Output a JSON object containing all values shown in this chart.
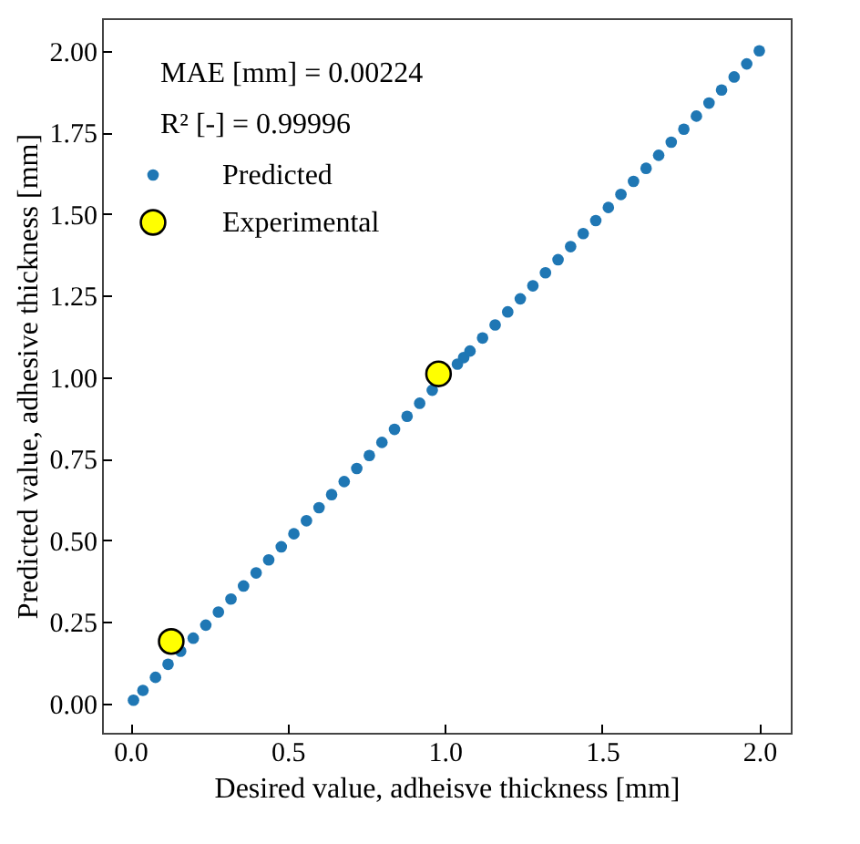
{
  "chart_data": {
    "type": "scatter",
    "xlabel": "Desired value, adheisve thickness [mm]",
    "ylabel": "Predicted value, adhesive thickness [mm]",
    "annotations": [
      "MAE [mm] = 0.00224",
      "R² [-] = 0.99996"
    ],
    "xlim": [
      -0.09,
      2.1
    ],
    "ylim": [
      -0.09,
      2.1
    ],
    "xticks": [
      {
        "value": 0,
        "label": "0.0"
      },
      {
        "value": 0.5,
        "label": "0.5"
      },
      {
        "value": 1,
        "label": "1.0"
      },
      {
        "value": 1.5,
        "label": "1.5"
      },
      {
        "value": 2,
        "label": "2.0"
      }
    ],
    "yticks": [
      {
        "value": 0,
        "label": "0.00"
      },
      {
        "value": 0.25,
        "label": "0.25"
      },
      {
        "value": 0.5,
        "label": "0.50"
      },
      {
        "value": 0.75,
        "label": "0.75"
      },
      {
        "value": 1,
        "label": "1.00"
      },
      {
        "value": 1.25,
        "label": "1.25"
      },
      {
        "value": 1.5,
        "label": "1.50"
      },
      {
        "value": 1.75,
        "label": "1.75"
      },
      {
        "value": 2,
        "label": "2.00"
      }
    ],
    "legend": "top left",
    "grid": false,
    "marker": "circle",
    "series": [
      {
        "name": "Predicted",
        "color": "#1f77b4",
        "x": [
          0.01,
          0.04,
          0.08,
          0.12,
          0.16,
          0.2,
          0.24,
          0.28,
          0.32,
          0.36,
          0.4,
          0.44,
          0.48,
          0.52,
          0.56,
          0.6,
          0.64,
          0.68,
          0.72,
          0.76,
          0.8,
          0.84,
          0.88,
          0.92,
          0.96,
          1.06,
          1.04,
          1.08,
          1.12,
          1.16,
          1.2,
          1.24,
          1.28,
          1.32,
          1.36,
          1.4,
          1.44,
          1.48,
          1.52,
          1.56,
          1.6,
          1.64,
          1.68,
          1.72,
          1.76,
          1.8,
          1.84,
          1.88,
          1.92,
          1.96,
          2.0
        ],
        "values": [
          0.01,
          0.04,
          0.08,
          0.12,
          0.16,
          0.2,
          0.24,
          0.28,
          0.32,
          0.36,
          0.4,
          0.44,
          0.48,
          0.52,
          0.56,
          0.6,
          0.64,
          0.68,
          0.72,
          0.76,
          0.8,
          0.84,
          0.88,
          0.92,
          0.96,
          1.06,
          1.04,
          1.08,
          1.12,
          1.16,
          1.2,
          1.24,
          1.28,
          1.32,
          1.36,
          1.4,
          1.44,
          1.48,
          1.52,
          1.56,
          1.6,
          1.64,
          1.68,
          1.72,
          1.76,
          1.8,
          1.84,
          1.88,
          1.92,
          1.96,
          2.0
        ]
      },
      {
        "name": "Experimental",
        "color": "#ffff00",
        "x": [
          0.13,
          0.98
        ],
        "values": [
          0.19,
          1.01
        ]
      }
    ]
  }
}
